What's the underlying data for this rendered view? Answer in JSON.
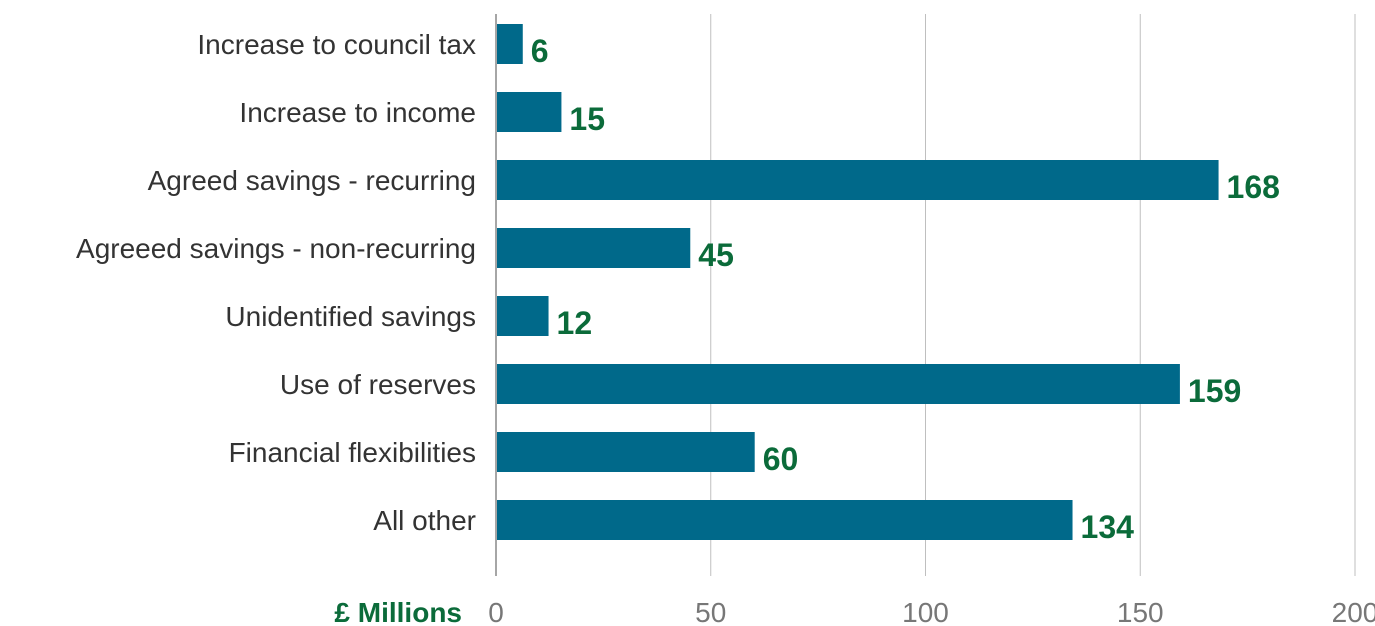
{
  "chart_data": {
    "type": "bar",
    "orientation": "horizontal",
    "categories": [
      "Increase to council tax",
      "Increase to income",
      "Agreed savings - recurring",
      "Agreeed savings - non-recurring",
      "Unidentified savings",
      "Use of reserves",
      "Financial flexibilities",
      "All other"
    ],
    "values": [
      6,
      15,
      168,
      45,
      12,
      159,
      60,
      134
    ],
    "xlabel": "£ Millions",
    "ylabel": "",
    "xlim": [
      0,
      200
    ],
    "xticks": [
      0,
      50,
      100,
      150,
      200
    ],
    "grid": true,
    "data_labels": true
  },
  "colors": {
    "bar": "#00698a",
    "value_label": "#0b6b3a",
    "unit_label": "#0b6b3a",
    "grid": "#bfbfbf",
    "axis": "#a6a6a6",
    "category_text": "#333333",
    "tick_text": "#777777"
  }
}
